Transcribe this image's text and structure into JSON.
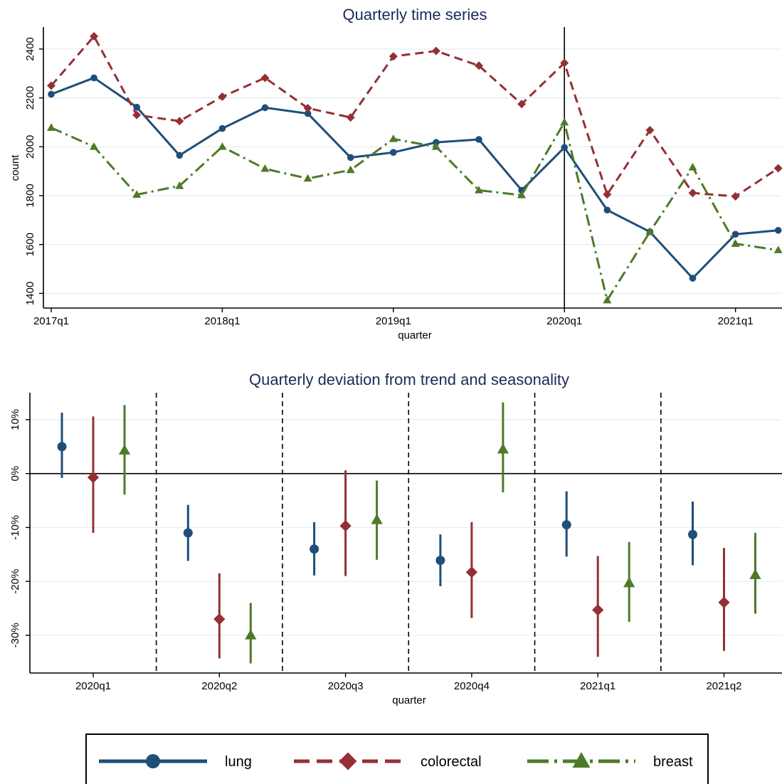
{
  "legend": {
    "items": [
      {
        "label": "lung",
        "color": "#1f4e79",
        "marker": "circle",
        "dash": "solid"
      },
      {
        "label": "colorectal",
        "color": "#943034",
        "marker": "diamond",
        "dash": "dash"
      },
      {
        "label": "breast",
        "color": "#4d7a28",
        "marker": "triangle",
        "dash": "dashdot"
      }
    ]
  },
  "chart_data": [
    {
      "type": "line",
      "title": "Quarterly time series",
      "xlabel": "quarter",
      "ylabel": "count",
      "x": [
        "2017q1",
        "2017q2",
        "2017q3",
        "2017q4",
        "2018q1",
        "2018q2",
        "2018q3",
        "2018q4",
        "2019q1",
        "2019q2",
        "2019q3",
        "2019q4",
        "2020q1",
        "2020q2",
        "2020q3",
        "2020q4",
        "2021q1",
        "2021q2"
      ],
      "x_tick_labels": [
        "2017q1",
        "2018q1",
        "2019q1",
        "2020q1",
        "2021q1"
      ],
      "y_ticks": [
        1400,
        1600,
        1800,
        2000,
        2200,
        2400
      ],
      "ylim": [
        1340,
        2490
      ],
      "vertical_line_at": "2020q1",
      "grid": true,
      "series": [
        {
          "name": "lung",
          "values": [
            2215,
            2282,
            2162,
            1965,
            2075,
            2160,
            2136,
            1956,
            1977,
            2018,
            2030,
            1822,
            1997,
            1741,
            1652,
            1462,
            1642,
            1658
          ]
        },
        {
          "name": "colorectal",
          "values": [
            2250,
            2452,
            2130,
            2105,
            2205,
            2282,
            2158,
            2120,
            2370,
            2392,
            2332,
            2175,
            2343,
            1805,
            2068,
            1811,
            1797,
            1912
          ]
        },
        {
          "name": "breast",
          "values": [
            2078,
            2000,
            1804,
            1840,
            2000,
            1910,
            1870,
            1905,
            2032,
            2000,
            1822,
            1802,
            2100,
            1372,
            1652,
            1916,
            1603,
            1577
          ]
        }
      ]
    },
    {
      "type": "scatter",
      "title": "Quarterly deviation from trend and seasonality",
      "xlabel": "quarter",
      "ylabel": "",
      "categories": [
        "2020q1",
        "2020q2",
        "2020q3",
        "2020q4",
        "2021q1",
        "2021q2"
      ],
      "y_ticks": [
        10,
        0,
        -10,
        -20,
        -30
      ],
      "y_tick_labels": [
        "10%",
        "0%",
        "-10%",
        "-20%",
        "-30%"
      ],
      "ylim": [
        -37,
        15
      ],
      "reference_line_at": 0,
      "grid": true,
      "series": [
        {
          "name": "lung",
          "values": [
            5.0,
            -11.0,
            -14.0,
            -16.1,
            -9.5,
            -11.3
          ],
          "ci_low": [
            -0.8,
            -16.2,
            -18.9,
            -20.9,
            -15.4,
            -17.0
          ],
          "ci_high": [
            11.3,
            -5.8,
            -9.0,
            -11.3,
            -3.3,
            -5.2
          ]
        },
        {
          "name": "colorectal",
          "values": [
            -0.7,
            -27.0,
            -9.7,
            -18.3,
            -25.3,
            -23.9
          ],
          "ci_low": [
            -11.0,
            -34.3,
            -19.0,
            -26.8,
            -34.0,
            -32.9
          ],
          "ci_high": [
            10.6,
            -18.5,
            0.6,
            -9.0,
            -15.3,
            -13.8
          ]
        },
        {
          "name": "breast",
          "values": [
            4.3,
            -30.0,
            -8.6,
            4.5,
            -20.3,
            -18.8
          ],
          "ci_low": [
            -3.9,
            -35.2,
            -16.0,
            -3.5,
            -27.5,
            -26.0
          ],
          "ci_high": [
            12.7,
            -24.0,
            -1.3,
            13.2,
            -12.7,
            -11.0
          ]
        }
      ]
    }
  ]
}
